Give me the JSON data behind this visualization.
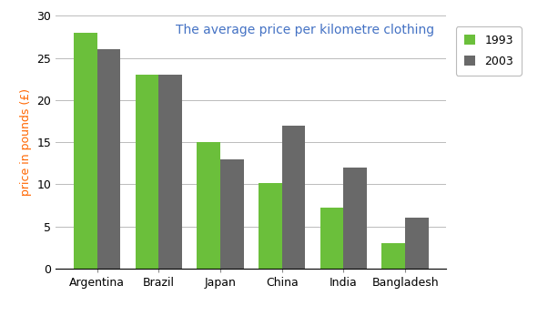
{
  "title": "The average price per kilometre clothing",
  "title_color": "#4472C4",
  "ylabel": "price in pounds (£)",
  "ylabel_color": "#FF6600",
  "categories": [
    "Argentina",
    "Brazil",
    "Japan",
    "China",
    "India",
    "Bangladesh"
  ],
  "values_1993": [
    28,
    23,
    15,
    10.1,
    7.2,
    3
  ],
  "values_2003": [
    26,
    23,
    13,
    17,
    12,
    6
  ],
  "color_1993": "#6BBF3B",
  "color_2003": "#696969",
  "ylim": [
    0,
    30
  ],
  "yticks": [
    0,
    5,
    10,
    15,
    20,
    25,
    30
  ],
  "legend_labels": [
    "1993",
    "2003"
  ],
  "bar_width": 0.38,
  "background_color": "#FFFFFF",
  "grid_color": "#BBBBBB"
}
